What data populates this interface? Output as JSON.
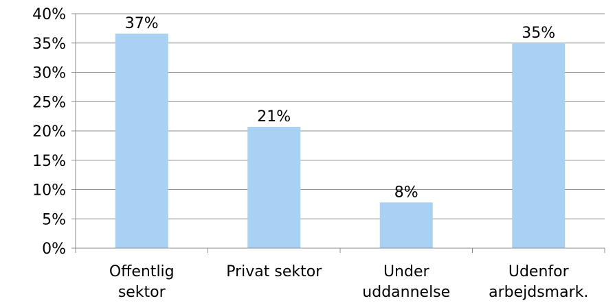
{
  "chart_data": {
    "type": "bar",
    "categories": [
      [
        "Offentlig",
        "sektor"
      ],
      [
        "Privat sektor"
      ],
      [
        "Under",
        "uddannelse"
      ],
      [
        "Udenfor",
        "arbejdsmark."
      ]
    ],
    "values": [
      36.6,
      20.7,
      7.8,
      35.0
    ],
    "data_labels": [
      "37%",
      "21%",
      "8%",
      "35%"
    ],
    "yticks": [
      "0%",
      "5%",
      "10%",
      "15%",
      "20%",
      "25%",
      "30%",
      "35%",
      "40%"
    ],
    "ylim": [
      0,
      40
    ],
    "grid": true,
    "bar_color": "#A9D1F3",
    "grid_color": "#8C8C8C",
    "axis_color": "#8C8C8C"
  }
}
